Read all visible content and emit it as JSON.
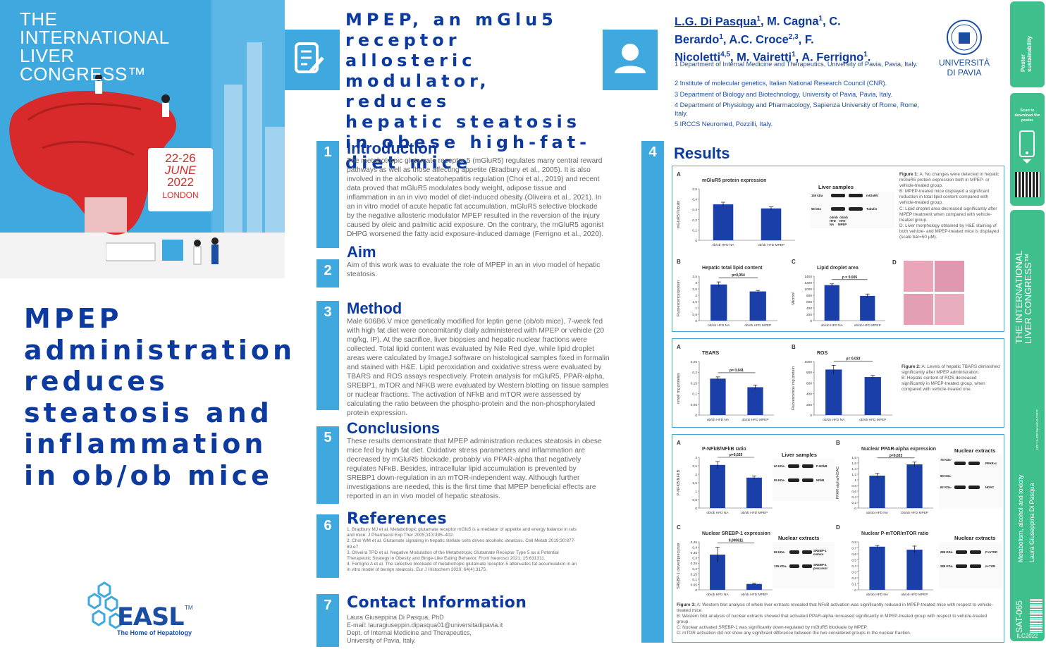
{
  "left": {
    "congress_title": [
      "THE",
      "INTERNATIONAL",
      "LIVER",
      "CONGRESS™"
    ],
    "date": {
      "day": "22-26",
      "month": "JUNE",
      "year": "2022",
      "city": "LONDON"
    },
    "headline": "MPEP\nadministration\nreduces\nsteatosis and\ninflammation\nin ob/ob mice",
    "easl": {
      "name": "EASL",
      "tm": "TM",
      "tagline": "The Home of Hepatology"
    }
  },
  "title": "MPEP, an mGlu5\nreceptor allosteric\nmodulator, reduces\nhepatic steatosis\nin obese high-fat-\ndiet mice",
  "authors": {
    "line1_name": "L.G. Di Pasqua",
    "line1_sup": "1",
    "line1_rest": ", M. Cagna",
    "line1_rest_sup": "1",
    "line1_end": ", C.",
    "line2": "Berardo",
    "line2_sup": "1",
    "line2_rest": ", A.C. Croce",
    "line2_rest_sup": "2,3",
    "line2_end": ", F.",
    "line3": "Nicoletti",
    "line3_sup": "4,5",
    "line3_rest": ", M. Vairetti",
    "line3_rest_sup": "1",
    "line3_mid": ", A. Ferrigno",
    "line3_end_sup": "1",
    "line3_end": "."
  },
  "affiliations": [
    "1 Department of Internal Medicine and Therapeutics, University of Pavia, Pavia, Italy.",
    "2 Institute of molecular genetics, Italian National Research Council (CNR).",
    "3 Department of Biology and Biotechnology, University of Pavia, Pavia, Italy.",
    "4 Department of Physiology and Pharmacology, Sapienza University of Rome, Rome, Italy.",
    "5 IRCCS Neuromed, Pozzilli, Italy."
  ],
  "university": {
    "line1": "UNIVERSITÀ",
    "line2": "DI PAVIA"
  },
  "sections": {
    "intro": {
      "num": "1",
      "title": "Introduction",
      "body": "The metabotropic glutamate receptor 5 (mGluR5) regulates many central reward\npathways as well as those affecting appetite (Bradbury et al., 2005). It is also\ninvolved in the alcoholic steatohepatitis regulation (Choi et al., 2019) and recent\ndata proved that mGluR5 modulates body weight, adipose tissue and\ninflammation in an in vivo model of diet-induced obesity (Oliveira et al., 2021). In\nan in vitro model of acute hepatic fat accumulation, mGluR5 selective blockade\nby the negative allosteric modulator MPEP resulted in the reversion of the injury\ncaused by oleic and palmitic acid exposure. On the contrary, the mGluR5 agonist\nDHPG worsened the fatty acid exposure-induced damage (Ferrigno et al., 2020)."
    },
    "aim": {
      "num": "2",
      "title": "Aim",
      "body": "Aim of this work was to evaluate the role of MPEP in an in vivo model of hepatic\nsteatosis."
    },
    "method": {
      "num": "3",
      "title": "Method",
      "body": "Male 606B6.V mice genetically modified for leptin gene (ob/ob mice), 7-week fed\nwith high fat diet were concomitantly daily administered with MPEP or vehicle (20\nmg/kg, IP). At the sacrifice, liver biopsies and hepatic nuclear fractions were\ncollected. Total lipid content was evaluated by Nile Red dye, while lipid droplet\nareas were calculated by ImageJ software on histological samples fixed in formalin\nand stained with H&E. Lipid peroxidation and oxidative stress were evaluated by\nTBARS and ROS assays respectively. Protein analysis for mGluR5, PPAR-alpha,\nSREBP1, mTOR and NFKB were evaluated by Western blotting on tissue samples\nor nuclear fractions. The activation of NFkB and mTOR were assessed by\ncalculating the ratio between the phospho-protein and the non-phosphorylated\nprotein expression."
    },
    "conclusions": {
      "num": "5",
      "title": "Conclusions",
      "body": "These results demonstrate that MPEP administration reduces steatosis in obese\nmice fed by high fat diet. Oxidative stress parameters and inflammation are\ndecreased by mGluR5 blockade, probably via PPAR-alpha that negatively\nregulates NFκB. Besides, intracellular lipid accumulation is prevented by\nSREBP1 down-regulation in an mTOR-independent way. Although further\ninvestigations are needed, this is the first time that MPEP beneficial effects are\nreported in an in vivo model of hepatic steatosis."
    },
    "references": {
      "num": "6",
      "title": "References",
      "body": "1. Bradbury MJ et al. Metabotropic glutamate receptor mGlu5 is a mediator of appetite and energy balance in rats\nand mice. J Pharmacol Exp Ther 2005;313:395–402.\n2. Choi WM et al. Glutamate signaling in hepatic stellate cells drives alcoholic steatosis. Cell Metab 2019;30:877-\n89.e7.\n3. Oliveira TPD et al. Negative Modulation of the Metabotropic Glutamate Receptor Type 5 as a Potential\nTherapeutic Strategy in Obesity and Binge-Like Eating Behavior. Front Neurosci 2021; 15:631311.\n4. Ferrigno A et al. The selective blockade of metabotropic glutamate receptor-5 attenuates fat accumulation in an\nin vitro model of benign steatosis. Eur J Histochem 2020; 64(4):3175."
    },
    "contact": {
      "num": "7",
      "title": "Contact Information",
      "body": "Laura Giuseppina Di Pasqua, PhD\nE-mail: lauragiuseppin.dipasqua01@universitadipavia.it\nDept. of Internal Medicine and Therapeutics,\nUniversity of Pavia, Italy."
    },
    "results": {
      "num": "4",
      "title": "Results"
    }
  },
  "figure1": {
    "captions": {
      "a": "A: No changes were detected in hepatic mGluR5 protein expression both in MPEP- or vehicle-treated group.",
      "b": "B: MPEP-treated mice displayed a significant reduction in total lipid content compared with vehicle-treated group.",
      "c": "C: Lipid droplet area decreased significantly after MPEP treatment when compared with vehicle-treated group.",
      "d": "D: Liver morphology obtained by H&E staining of both vehicle- and MPEP-treated mice is displayed (scale bar=50 µM)."
    },
    "fig_label": "Figure 1:",
    "blot": {
      "title": "Liver samples",
      "kda1": "150 kDa",
      "kda2": "55 kDa",
      "lab1": "mGluR5",
      "lab2": "Tubulin",
      "lanes": "ob/ob  ob/ob\nHFD    HFD\nNA     MPEP"
    }
  },
  "figure2": {
    "fig_label": "Figure 2:",
    "caption_a": "A: Levels of hepatic TBARS diminished significantly after MPEP administration.",
    "caption_b": "B: Hepatic content of ROS decreased significantly in MPEP-treated group, when compared with vehicle-treated one."
  },
  "figure3": {
    "fig_label": "Figure 3:",
    "caption_a": "A: Western blot analysis of whole liver extracts revealed that NFκB activation was significantly reduced in MPEP-treated mice with respect to vehicle-treated mice.",
    "caption_b": "B: Western blot analysis of nuclear extracts showed that activated PPAR-alpha increased significantly in MPEP-treated group with respect to vehicle-treated group.",
    "caption_c": "C: Nuclear activated SREBP-1 was significantly down-regulated by mGluR5 blockade by MPEP.",
    "caption_d": "D: mTOR activation did not show any significant difference between the two considered groups in the nuclear fraction.",
    "blots": {
      "a": {
        "title": "Liver samples",
        "kda1": "60 KDa-",
        "kda2": "65 KDa-",
        "lab1": "P-NFkB",
        "lab2": "NFkB"
      },
      "b": {
        "title": "Nuclear extracts",
        "kda1": "75 KDa-",
        "kda2": "90 KDa-",
        "kda3": "62 KDa-",
        "lab1": "PPAR-α",
        "lab2": "HDAC"
      },
      "c": {
        "title": "Nuclear extracts",
        "kda1": "68 KDa-",
        "kda2": "125 KDa-",
        "lab1": "SREBP-1 mature",
        "lab2": "SREBP-1 precursor"
      },
      "d": {
        "title": "Nuclear extracts",
        "kda1": "289 KDa-",
        "kda2": "289 KDa-",
        "lab1": "P-mTOR",
        "lab2": "m-TOR"
      }
    }
  },
  "chart_data": [
    {
      "id": "1A",
      "type": "bar",
      "title": "mGluR5 protein expression",
      "ylabel": "mGluR5/Tubulin",
      "categories": [
        "ob/ob HFD NA",
        "ob/ob HFD MPEP"
      ],
      "values": [
        0.35,
        0.31
      ],
      "errors": [
        0.02,
        0.015
      ],
      "ylim": [
        0,
        0.5
      ],
      "yticks": [
        "0",
        "0,1",
        "0,2",
        "0,3",
        "0,4",
        "0,5"
      ],
      "pvalue": ""
    },
    {
      "id": "1B",
      "type": "bar",
      "title": "Hepatic total lipid content",
      "ylabel": "Fluorescence/protein",
      "categories": [
        "ob/ob HFD NA",
        "ob/ob HFD MPEP"
      ],
      "values": [
        2.85,
        2.3
      ],
      "errors": [
        0.2,
        0.08
      ],
      "ylim": [
        0,
        3.5
      ],
      "yticks": [
        "0",
        "0,5",
        "1",
        "1,5",
        "2",
        "2,5",
        "3",
        "3,5"
      ],
      "pvalue": "p=0,054"
    },
    {
      "id": "1C",
      "type": "bar",
      "title": "Lipid droplet area",
      "ylabel": "Micron²",
      "categories": [
        "ob/ob HFD NA",
        "ob/ob HFD MPEP"
      ],
      "values": [
        1120,
        780
      ],
      "errors": [
        40,
        60
      ],
      "ylim": [
        0,
        1400
      ],
      "yticks": [
        "0",
        "200",
        "400",
        "600",
        "800",
        "1000",
        "1200",
        "1400"
      ],
      "pvalue": "p = 0,005"
    },
    {
      "id": "2A",
      "type": "bar",
      "title": "TBARS",
      "ylabel": "nmol/ mg proteins",
      "categories": [
        "ob/ob HFD NA",
        "ob/ob HFD MPEP"
      ],
      "values": [
        0.17,
        0.13
      ],
      "errors": [
        0.008,
        0.01
      ],
      "ylim": [
        0,
        0.25
      ],
      "yticks": [
        "0",
        "0,05",
        "0,1",
        "0,15",
        "0,2",
        "0,25"
      ],
      "pvalue": "p= 0,041"
    },
    {
      "id": "2B",
      "type": "bar",
      "title": "ROS",
      "ylabel": "Fluorescence/ mg protein",
      "categories": [
        "ob/ob HFD NA",
        "ob/ob HFD MPEP"
      ],
      "values": [
        850,
        710
      ],
      "errors": [
        80,
        30
      ],
      "ylim": [
        0,
        1000
      ],
      "yticks": [
        "0",
        "200",
        "400",
        "600",
        "800",
        "1000"
      ],
      "pvalue": "p= 0,033"
    },
    {
      "id": "3A",
      "type": "bar",
      "title": "P-NFkB/NFkB ratio",
      "ylabel": "P-NFKB/NFKB",
      "categories": [
        "ob/ob HFD NA",
        "ob/ob HFD MPEP"
      ],
      "values": [
        2.55,
        1.8
      ],
      "errors": [
        0.2,
        0.1
      ],
      "ylim": [
        0,
        3
      ],
      "yticks": [
        "0",
        "0,5",
        "1",
        "1,5",
        "2",
        "2,5",
        "3"
      ],
      "pvalue": "p=0,025"
    },
    {
      "id": "3B",
      "type": "bar",
      "title": "Nuclear PPAR-alpha expression",
      "ylabel": "PPAR-alpha/HDAC",
      "categories": [
        "ob/ob HFD NA",
        "Ob/ob HFD MPEP"
      ],
      "values": [
        1.15,
        1.55
      ],
      "errors": [
        0.08,
        0.08
      ],
      "ylim": [
        0,
        1.8
      ],
      "yticks": [
        "0",
        "0,2",
        "0,4",
        "0,6",
        "0,8",
        "1",
        "1,2",
        "1,4",
        "1,6",
        "1,8"
      ],
      "pvalue": "p=0,023"
    },
    {
      "id": "3C",
      "type": "bar",
      "title": "Nuclear SREBP-1 expression",
      "ylabel": "SREBP-1 cleved/precursor",
      "categories": [
        "ob/ob HFD NA",
        "ob/ob HFD MPEP"
      ],
      "values": [
        0.33,
        0.055
      ],
      "errors": [
        0.07,
        0.008
      ],
      "ylim": [
        0,
        0.45
      ],
      "yticks": [
        "0",
        "0,05",
        "0,1",
        "0,15",
        "0,2",
        "0,25",
        "0,3",
        "0,35",
        "0,4",
        "0,45"
      ],
      "pvalue": "0,000611"
    },
    {
      "id": "3D",
      "type": "bar",
      "title": "Nuclear P-mTOR/mTOR ratio",
      "ylabel": "",
      "categories": [
        "ob/ob HFD NA",
        "ob/ob HFD MPEP"
      ],
      "values": [
        0.72,
        0.67
      ],
      "errors": [
        0.02,
        0.06
      ],
      "ylim": [
        0,
        0.8
      ],
      "yticks": [
        "0",
        "0,1",
        "0,2",
        "0,3",
        "0,4",
        "0,5",
        "0,6",
        "0,7",
        "0,8"
      ],
      "pvalue": ""
    }
  ],
  "strip": {
    "poster_top": "Poster\nsustainability",
    "scan": "Scan to\ndownload the\nposter",
    "congress": "THE INTERNATIONAL\nLIVER CONGRESS™",
    "doi": "DOI: 10.5281/zenodo.ILC2022",
    "topic": "Metabolism, alcohol and toxicity",
    "author": "Laura Giuseppina Di Pasqua",
    "code": "SAT-065",
    "ilc": "ILC2022"
  },
  "colors": {
    "accent": "#3fa9df",
    "navy": "#0d3a9e",
    "bar": "#1a3fa8",
    "strip_green": "#3fbf8c",
    "liver_red": "#d82a2a"
  }
}
